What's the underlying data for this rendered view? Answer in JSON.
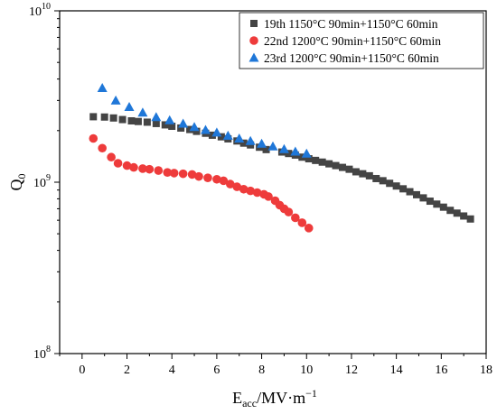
{
  "chart_data": {
    "type": "scatter",
    "xlabel": {
      "main": "E",
      "sub": "acc",
      "rest": "/MV·m",
      "sup": "−1"
    },
    "ylabel": {
      "main": "Q",
      "sub": "0"
    },
    "xlim": [
      -1,
      18
    ],
    "ylim": [
      100000000,
      10000000000
    ],
    "yscale": "log",
    "xticks": [
      0,
      2,
      4,
      6,
      8,
      10,
      12,
      14,
      16,
      18
    ],
    "yticks": [
      {
        "value": 100000000,
        "base": "10",
        "exp": "8"
      },
      {
        "value": 1000000000,
        "base": "10",
        "exp": "9"
      },
      {
        "value": 10000000000,
        "base": "10",
        "exp": "10"
      }
    ],
    "legend_position": "top-right",
    "series": [
      {
        "name": "19th 1150°C 90min+1150°C 60min",
        "marker": "square",
        "color": "#444444",
        "points": [
          [
            0.5,
            2410000000.0
          ],
          [
            1.0,
            2400000000.0
          ],
          [
            1.4,
            2370000000.0
          ],
          [
            1.8,
            2320000000.0
          ],
          [
            2.2,
            2280000000.0
          ],
          [
            2.5,
            2260000000.0
          ],
          [
            2.9,
            2240000000.0
          ],
          [
            3.3,
            2200000000.0
          ],
          [
            3.7,
            2160000000.0
          ],
          [
            4.0,
            2120000000.0
          ],
          [
            4.4,
            2070000000.0
          ],
          [
            4.8,
            2030000000.0
          ],
          [
            5.1,
            1980000000.0
          ],
          [
            5.5,
            1930000000.0
          ],
          [
            5.8,
            1880000000.0
          ],
          [
            6.2,
            1840000000.0
          ],
          [
            6.5,
            1790000000.0
          ],
          [
            6.9,
            1740000000.0
          ],
          [
            7.2,
            1690000000.0
          ],
          [
            7.5,
            1650000000.0
          ],
          [
            7.9,
            1600000000.0
          ],
          [
            8.2,
            1550000000.0
          ],
          [
            8.9,
            1500000000.0
          ],
          [
            9.2,
            1470000000.0
          ],
          [
            9.5,
            1440000000.0
          ],
          [
            9.8,
            1400000000.0
          ],
          [
            10.1,
            1370000000.0
          ],
          [
            10.4,
            1340000000.0
          ],
          [
            10.7,
            1310000000.0
          ],
          [
            11.0,
            1280000000.0
          ],
          [
            11.3,
            1250000000.0
          ],
          [
            11.6,
            1220000000.0
          ],
          [
            11.9,
            1190000000.0
          ],
          [
            12.2,
            1150000000.0
          ],
          [
            12.5,
            1120000000.0
          ],
          [
            12.8,
            1090000000.0
          ],
          [
            13.1,
            1050000000.0
          ],
          [
            13.4,
            1020000000.0
          ],
          [
            13.7,
            985000000.0
          ],
          [
            14.0,
            950000000.0
          ],
          [
            14.3,
            915000000.0
          ],
          [
            14.6,
            880000000.0
          ],
          [
            14.9,
            845000000.0
          ],
          [
            15.2,
            810000000.0
          ],
          [
            15.5,
            775000000.0
          ],
          [
            15.8,
            745000000.0
          ],
          [
            16.1,
            715000000.0
          ],
          [
            16.4,
            685000000.0
          ],
          [
            16.7,
            660000000.0
          ],
          [
            17.0,
            635000000.0
          ],
          [
            17.3,
            610000000.0
          ]
        ]
      },
      {
        "name": "22nd 1200°C 90min+1150°C 60min",
        "marker": "circle",
        "color": "#ee3b3b",
        "points": [
          [
            0.5,
            1800000000.0
          ],
          [
            0.9,
            1580000000.0
          ],
          [
            1.3,
            1400000000.0
          ],
          [
            1.6,
            1290000000.0
          ],
          [
            2.0,
            1250000000.0
          ],
          [
            2.3,
            1220000000.0
          ],
          [
            2.7,
            1200000000.0
          ],
          [
            3.0,
            1190000000.0
          ],
          [
            3.4,
            1170000000.0
          ],
          [
            3.8,
            1140000000.0
          ],
          [
            4.1,
            1130000000.0
          ],
          [
            4.5,
            1120000000.0
          ],
          [
            4.9,
            1110000000.0
          ],
          [
            5.2,
            1080000000.0
          ],
          [
            5.6,
            1060000000.0
          ],
          [
            6.0,
            1040000000.0
          ],
          [
            6.3,
            1020000000.0
          ],
          [
            6.6,
            975000000.0
          ],
          [
            6.9,
            940000000.0
          ],
          [
            7.2,
            910000000.0
          ],
          [
            7.5,
            890000000.0
          ],
          [
            7.8,
            870000000.0
          ],
          [
            8.1,
            850000000.0
          ],
          [
            8.3,
            825000000.0
          ],
          [
            8.6,
            780000000.0
          ],
          [
            8.8,
            735000000.0
          ],
          [
            9.0,
            700000000.0
          ],
          [
            9.2,
            670000000.0
          ],
          [
            9.5,
            620000000.0
          ],
          [
            9.8,
            580000000.0
          ],
          [
            10.1,
            540000000.0
          ]
        ]
      },
      {
        "name": "23rd 1200°C 90min+1150°C 60min",
        "marker": "triangle",
        "color": "#1f77d8",
        "points": [
          [
            0.9,
            3550000000.0
          ],
          [
            1.5,
            3000000000.0
          ],
          [
            2.1,
            2750000000.0
          ],
          [
            2.7,
            2550000000.0
          ],
          [
            3.3,
            2400000000.0
          ],
          [
            3.9,
            2300000000.0
          ],
          [
            4.5,
            2200000000.0
          ],
          [
            5.0,
            2100000000.0
          ],
          [
            5.5,
            2020000000.0
          ],
          [
            6.0,
            1950000000.0
          ],
          [
            6.5,
            1870000000.0
          ],
          [
            7.0,
            1800000000.0
          ],
          [
            7.5,
            1740000000.0
          ],
          [
            8.0,
            1680000000.0
          ],
          [
            8.5,
            1620000000.0
          ],
          [
            9.0,
            1560000000.0
          ],
          [
            9.5,
            1510000000.0
          ],
          [
            10.0,
            1470000000.0
          ]
        ]
      }
    ]
  }
}
